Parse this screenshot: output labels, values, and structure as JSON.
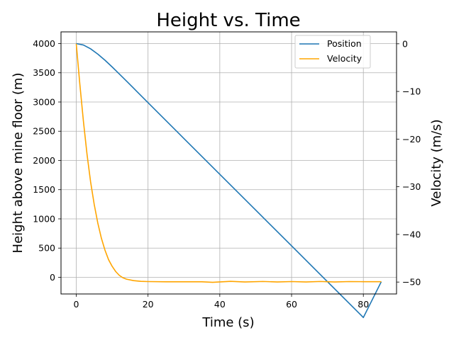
{
  "chart_data": {
    "type": "line",
    "title": "Height vs. Time",
    "xlabel": "Time (s)",
    "ylabel": "Height above mine floor (m)",
    "y2label": "Velocity (m/s)",
    "xlim": [
      -4.25,
      89.25
    ],
    "ylim": [
      -285,
      4200
    ],
    "y2lim": [
      -52.5,
      2.5
    ],
    "xticks": [
      0,
      20,
      40,
      60,
      80
    ],
    "yticks": [
      0,
      500,
      1000,
      1500,
      2000,
      2500,
      3000,
      3500,
      4000
    ],
    "y2ticks": [
      0,
      -10,
      -20,
      -30,
      -40,
      -50
    ],
    "grid": true,
    "legend_position": "top-right",
    "colors": {
      "position": "#1f77b4",
      "velocity": "#ffa500"
    },
    "series": [
      {
        "name": "Position",
        "axis": "left",
        "x": [
          0,
          2,
          4,
          6,
          8,
          10,
          12,
          14,
          16,
          20,
          30,
          40,
          50,
          60,
          70,
          80,
          85
        ],
        "y": [
          4000,
          3975,
          3910,
          3820,
          3715,
          3600,
          3480,
          3358,
          3235,
          2988,
          2375,
          1763,
          1150,
          538,
          -75,
          -688,
          -75
        ]
      },
      {
        "name": "Velocity",
        "axis": "right",
        "x": [
          0,
          1,
          2,
          3,
          4,
          5,
          6,
          7,
          8,
          9,
          10,
          11,
          12,
          13,
          14,
          16,
          18,
          20,
          25,
          30,
          35,
          38,
          43,
          47,
          52,
          56,
          60,
          64,
          68,
          72,
          76,
          80,
          85
        ],
        "y": [
          0,
          -8.5,
          -16.3,
          -23.2,
          -29,
          -33.7,
          -37.6,
          -40.8,
          -43.3,
          -45.3,
          -46.7,
          -47.8,
          -48.6,
          -49.1,
          -49.4,
          -49.7,
          -49.85,
          -49.9,
          -49.95,
          -49.95,
          -49.95,
          -50.05,
          -49.85,
          -49.98,
          -49.88,
          -49.98,
          -49.9,
          -49.98,
          -49.88,
          -49.98,
          -49.9,
          -49.92,
          -49.92
        ]
      }
    ]
  }
}
